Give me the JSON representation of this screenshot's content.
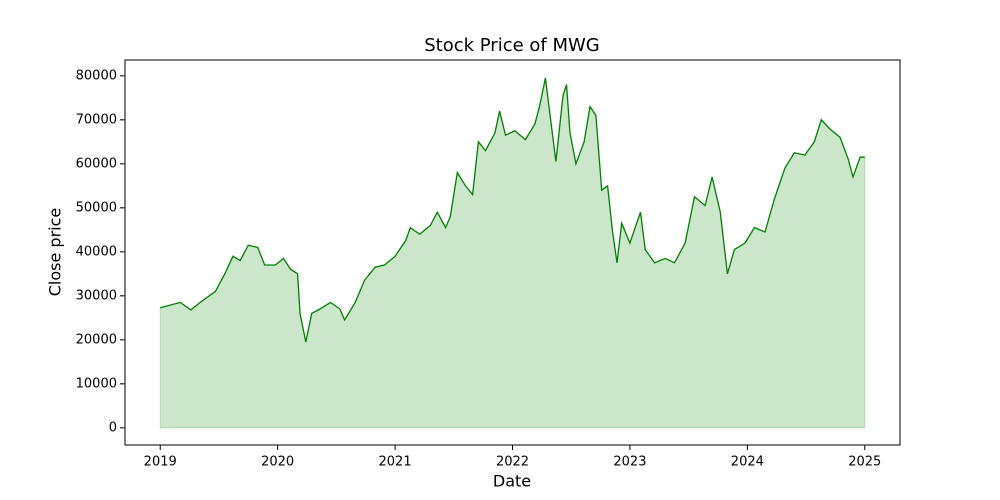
{
  "chart_data": {
    "type": "area",
    "title": "Stock Price of MWG",
    "x_label": "Date",
    "y_label": "Close price",
    "series": [
      {
        "name": "Close price",
        "color": "#008000",
        "fill_alpha": 0.2,
        "x": [
          2019.0,
          2019.17,
          2019.26,
          2019.34,
          2019.47,
          2019.55,
          2019.62,
          2019.68,
          2019.75,
          2019.83,
          2019.89,
          2019.98,
          2020.05,
          2020.11,
          2020.17,
          2020.19,
          2020.24,
          2020.29,
          2020.36,
          2020.45,
          2020.53,
          2020.57,
          2020.66,
          2020.74,
          2020.83,
          2020.91,
          2021.0,
          2021.09,
          2021.13,
          2021.21,
          2021.3,
          2021.36,
          2021.43,
          2021.47,
          2021.53,
          2021.6,
          2021.66,
          2021.71,
          2021.77,
          2021.85,
          2021.89,
          2021.94,
          2022.02,
          2022.11,
          2022.19,
          2022.23,
          2022.28,
          2022.32,
          2022.37,
          2022.43,
          2022.46,
          2022.49,
          2022.54,
          2022.61,
          2022.66,
          2022.71,
          2022.76,
          2022.81,
          2022.85,
          2022.89,
          2022.93,
          2023.0,
          2023.09,
          2023.13,
          2023.21,
          2023.3,
          2023.38,
          2023.47,
          2023.55,
          2023.64,
          2023.7,
          2023.77,
          2023.83,
          2023.89,
          2023.98,
          2024.06,
          2024.15,
          2024.23,
          2024.32,
          2024.4,
          2024.49,
          2024.57,
          2024.63,
          2024.7,
          2024.79,
          2024.86,
          2024.9,
          2024.96,
          2025.0
        ],
        "values": [
          27300,
          28500,
          26800,
          28500,
          31000,
          35000,
          39000,
          38000,
          41500,
          41000,
          37000,
          37000,
          38500,
          36000,
          35000,
          26000,
          19500,
          26000,
          27000,
          28500,
          27000,
          24500,
          28500,
          33500,
          36500,
          37000,
          39000,
          42500,
          45500,
          44000,
          46000,
          49000,
          45500,
          48000,
          58000,
          55000,
          53000,
          65000,
          63000,
          67000,
          72000,
          66500,
          67500,
          65500,
          69000,
          73000,
          79500,
          71000,
          60500,
          75500,
          78000,
          67000,
          60000,
          65000,
          73000,
          71000,
          54000,
          55000,
          45000,
          37500,
          46500,
          42000,
          49000,
          40500,
          37500,
          38500,
          37500,
          42000,
          52500,
          50500,
          57000,
          49000,
          35000,
          40500,
          42000,
          45500,
          44500,
          52000,
          59000,
          62500,
          62000,
          65000,
          70000,
          68000,
          66000,
          61000,
          57000,
          61500,
          61500
        ]
      }
    ],
    "xlim": [
      2018.7,
      2025.3
    ],
    "xticks": [
      2019,
      2020,
      2021,
      2022,
      2023,
      2024,
      2025
    ],
    "ylim": [
      -3900,
      83600
    ],
    "yticks": [
      0,
      10000,
      20000,
      30000,
      40000,
      50000,
      60000,
      70000,
      80000
    ]
  }
}
